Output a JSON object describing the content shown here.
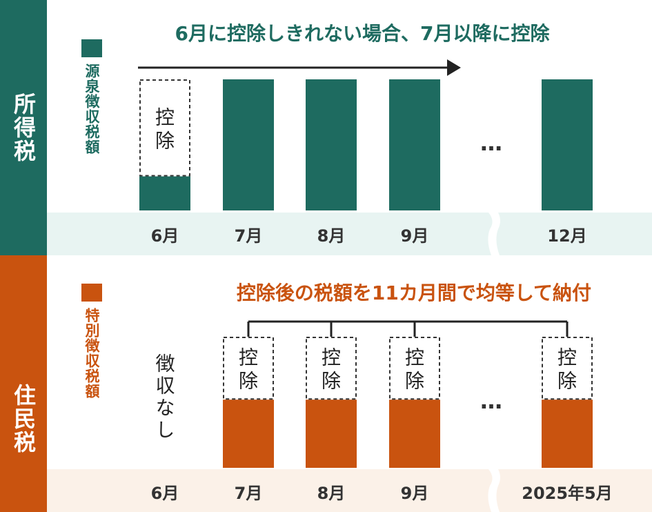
{
  "colors": {
    "income_tax": "#1e6b60",
    "resident_tax": "#c9530f",
    "income_axis_bg": "#e8f4f2",
    "resident_axis_bg": "#fbf1e8",
    "text": "#333333"
  },
  "income_tax": {
    "side_label": "所得税",
    "legend_label": "源泉徴収税額",
    "caption": "6月に控除しきれない場合、7月以降に控除",
    "deduction_box_label": "控除",
    "ellipsis": "…"
  },
  "resident_tax": {
    "side_label": "住民税",
    "legend_label": "特別徴収税額",
    "caption": "控除後の税額を11カ月間で均等して納付",
    "deduction_box_label": "控除",
    "no_collection_label": "徴収なし",
    "ellipsis": "…"
  },
  "chart_data": [
    {
      "type": "bar",
      "categories": [
        "6月",
        "7月",
        "8月",
        "9月",
        "12月"
      ],
      "values": [
        0.26,
        1.0,
        1.0,
        1.0,
        1.0
      ],
      "deduction": [
        0.74,
        0,
        0,
        0,
        0
      ],
      "ylim": [
        0,
        1
      ],
      "series_name": "源泉徴収税額"
    },
    {
      "type": "bar",
      "categories": [
        "6月",
        "7月",
        "8月",
        "9月",
        "2025年5月"
      ],
      "values": [
        0,
        0.52,
        0.52,
        0.52,
        0.52
      ],
      "deduction": [
        0,
        0.48,
        0.48,
        0.48,
        0.48
      ],
      "ylim": [
        0,
        1
      ],
      "series_name": "特別徴収税額"
    }
  ]
}
